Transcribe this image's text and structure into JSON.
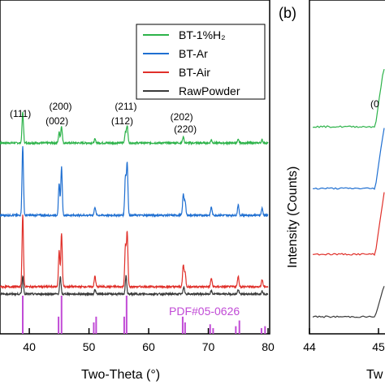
{
  "chart_data": [
    {
      "type": "line",
      "title": "",
      "xlabel": "Two-Theta (°)",
      "ylabel": "",
      "xlim": [
        34,
        80
      ],
      "x_ticks": [
        "40",
        "50",
        "60",
        "70",
        "80"
      ],
      "x_tick_values": [
        40,
        50,
        60,
        70,
        80
      ],
      "legend_placement": "top-right",
      "series": [
        {
          "name": "BT-1%H₂",
          "color": "#2db34a",
          "peaks": [
            [
              38.9,
              1.0
            ],
            [
              45.0,
              0.35
            ],
            [
              45.4,
              0.55
            ],
            [
              51.0,
              0.12
            ],
            [
              56.1,
              0.35
            ],
            [
              56.4,
              0.55
            ],
            [
              65.8,
              0.2
            ],
            [
              70.5,
              0.1
            ],
            [
              75.0,
              0.1
            ],
            [
              79.0,
              0.1
            ]
          ]
        },
        {
          "name": "BT-Ar",
          "color": "#1f6fd1",
          "peaks": [
            [
              38.9,
              1.0
            ],
            [
              45.0,
              0.45
            ],
            [
              45.4,
              0.7
            ],
            [
              51.0,
              0.12
            ],
            [
              56.1,
              0.55
            ],
            [
              56.4,
              0.75
            ],
            [
              65.8,
              0.3
            ],
            [
              66.1,
              0.2
            ],
            [
              70.5,
              0.12
            ],
            [
              75.0,
              0.15
            ],
            [
              79.0,
              0.1
            ]
          ]
        },
        {
          "name": "BT-Air",
          "color": "#e0302a",
          "peaks": [
            [
              38.9,
              1.0
            ],
            [
              45.0,
              0.5
            ],
            [
              45.4,
              0.75
            ],
            [
              51.0,
              0.15
            ],
            [
              56.1,
              0.55
            ],
            [
              56.4,
              0.75
            ],
            [
              65.8,
              0.3
            ],
            [
              66.1,
              0.2
            ],
            [
              70.5,
              0.12
            ],
            [
              75.0,
              0.15
            ],
            [
              79.0,
              0.1
            ]
          ]
        },
        {
          "name": "RawPowder",
          "color": "#3a3a3a",
          "peaks": [
            [
              38.9,
              0.85
            ],
            [
              45.2,
              0.8
            ],
            [
              51.0,
              0.2
            ],
            [
              56.2,
              0.85
            ],
            [
              65.9,
              0.35
            ],
            [
              70.5,
              0.15
            ],
            [
              75.0,
              0.2
            ],
            [
              79.0,
              0.15
            ]
          ]
        }
      ],
      "reference": {
        "name": "PDF#05-0626",
        "color": "#c14bd6",
        "lines": [
          [
            38.9,
            1.0
          ],
          [
            44.9,
            0.45
          ],
          [
            45.4,
            1.0
          ],
          [
            50.8,
            0.3
          ],
          [
            51.2,
            0.45
          ],
          [
            55.9,
            0.45
          ],
          [
            56.3,
            1.0
          ],
          [
            65.7,
            0.45
          ],
          [
            66.1,
            0.3
          ],
          [
            70.3,
            0.25
          ],
          [
            70.8,
            0.15
          ],
          [
            74.6,
            0.2
          ],
          [
            75.2,
            0.35
          ],
          [
            78.9,
            0.15
          ],
          [
            79.5,
            0.2
          ]
        ]
      },
      "peak_labels": [
        {
          "text": "(111)",
          "x": 38.9
        },
        {
          "text": "(002)",
          "x": 44.9
        },
        {
          "text": "(200)",
          "x": 45.5
        },
        {
          "text": "(112)",
          "x": 55.9
        },
        {
          "text": "(211)",
          "x": 56.5
        },
        {
          "text": "(202)",
          "x": 65.8
        },
        {
          "text": "(220)",
          "x": 66.4
        }
      ]
    },
    {
      "type": "line",
      "panel_label": "(b)",
      "xlabel": "Tw",
      "ylabel": "Intensity (Counts)",
      "x_ticks": [
        "44",
        "45"
      ],
      "peak_label": "(0",
      "series_colors": [
        "#2db34a",
        "#1f6fd1",
        "#e0302a",
        "#3a3a3a"
      ]
    }
  ]
}
